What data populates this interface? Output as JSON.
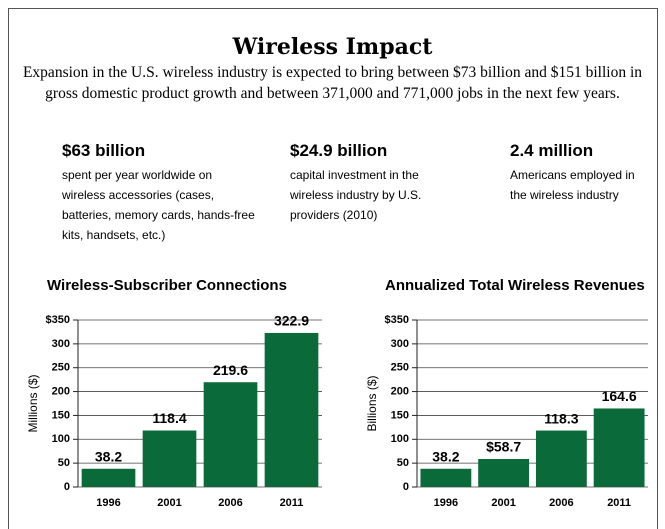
{
  "title": "Wireless Impact",
  "intro": "Expansion in the U.S. wireless industry is expected to bring between $73 billion and $151 billion in gross domestic product growth and between 371,000 and 771,000 jobs in the next few years.",
  "stats": [
    {
      "value": "$63 billion",
      "text": "spent per year worldwide on wireless accessories (cases, batteries, memory cards, hands-free kits, handsets, etc.)"
    },
    {
      "value": "$24.9 billion",
      "text": "capital investment in the wireless industry by U.S. providers (2010)"
    },
    {
      "value": "2.4 million",
      "text": "Americans employed in the wireless industry"
    }
  ],
  "chart_data": [
    {
      "type": "bar",
      "title": "Wireless-Subscriber Connections",
      "y_label": "Millions ($)",
      "categories": [
        "1996",
        "2001",
        "2006",
        "2011"
      ],
      "values": [
        38.2,
        118.4,
        219.6,
        322.9
      ],
      "color": "#0b6a3a",
      "ylim": [
        0,
        350
      ],
      "yticks": [
        0,
        50,
        100,
        150,
        200,
        250,
        300,
        {
          "value": 350,
          "label": "$350"
        }
      ],
      "grid": true
    },
    {
      "type": "bar",
      "title": "Annualized Total Wireless Revenues",
      "y_label": "Billions ($)",
      "categories": [
        "1996",
        "2001",
        "2006",
        "2011"
      ],
      "values": [
        38.2,
        58.7,
        118.3,
        164.6
      ],
      "value_labels": [
        "38.2",
        "$58.7",
        "118.3",
        "164.6"
      ],
      "color": "#0b6a3a",
      "ylim": [
        0,
        350
      ],
      "yticks": [
        0,
        50,
        100,
        150,
        200,
        250,
        300,
        {
          "value": 350,
          "label": "$350"
        }
      ],
      "grid": true
    }
  ]
}
